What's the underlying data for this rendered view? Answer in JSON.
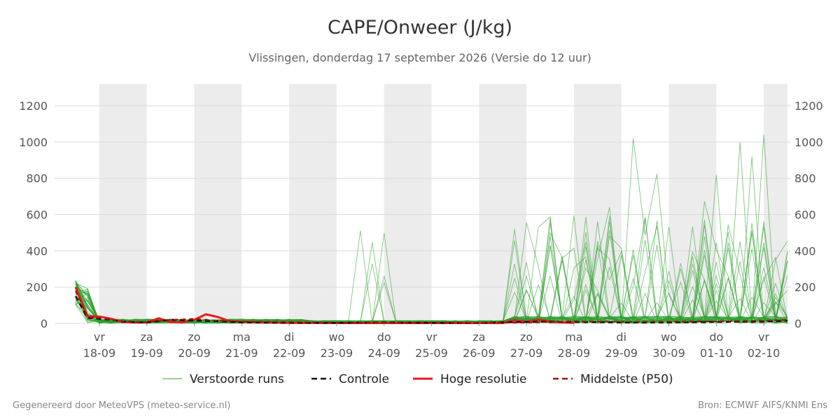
{
  "header": {
    "title": "CAPE/Onweer (J/kg)",
    "subtitle": "Vlissingen, donderdag 17 september 2026 (Versie do 12 uur)"
  },
  "footer": {
    "left": "Gegenereerd door MeteoVPS (meteo-service.nl)",
    "right": "Bron: ECMWF AIFS/KNMI Ens"
  },
  "colors": {
    "ensemble": "#2ca02c",
    "control": "#111111",
    "hires": "#e41a1c",
    "median": "#a50f15",
    "shade": "#ececec",
    "grid": "#d9d9d9"
  },
  "chart_data": {
    "type": "line",
    "title": "CAPE/Onweer (J/kg)",
    "subtitle": "Vlissingen, donderdag 17 september 2026 (Versie do 12 uur)",
    "xlabel": "",
    "ylabel": "",
    "xlim": [
      "2026-09-17T12:00",
      "2026-10-02T12:00"
    ],
    "ylim": [
      0,
      1320
    ],
    "y_ticks": [
      0,
      200,
      400,
      600,
      800,
      1000,
      1200
    ],
    "y_axis_both_sides": true,
    "grid": "horizontal",
    "legend_position": "bottom",
    "x_ticks": [
      {
        "day": "vr",
        "date": "18-09",
        "t": "2026-09-18T00:00"
      },
      {
        "day": "za",
        "date": "19-09",
        "t": "2026-09-19T00:00"
      },
      {
        "day": "zo",
        "date": "20-09",
        "t": "2026-09-20T00:00"
      },
      {
        "day": "ma",
        "date": "21-09",
        "t": "2026-09-21T00:00"
      },
      {
        "day": "di",
        "date": "22-09",
        "t": "2026-09-22T00:00"
      },
      {
        "day": "wo",
        "date": "23-09",
        "t": "2026-09-23T00:00"
      },
      {
        "day": "do",
        "date": "24-09",
        "t": "2026-09-24T00:00"
      },
      {
        "day": "vr",
        "date": "25-09",
        "t": "2026-09-25T00:00"
      },
      {
        "day": "za",
        "date": "26-09",
        "t": "2026-09-26T00:00"
      },
      {
        "day": "zo",
        "date": "27-09",
        "t": "2026-09-27T00:00"
      },
      {
        "day": "ma",
        "date": "28-09",
        "t": "2026-09-28T00:00"
      },
      {
        "day": "di",
        "date": "29-09",
        "t": "2026-09-29T00:00"
      },
      {
        "day": "wo",
        "date": "30-09",
        "t": "2026-09-30T00:00"
      },
      {
        "day": "do",
        "date": "01-10",
        "t": "2026-10-01T00:00"
      },
      {
        "day": "vr",
        "date": "02-10",
        "t": "2026-10-02T00:00"
      }
    ],
    "shaded_days": [
      "18-09",
      "20-09",
      "22-09",
      "24-09",
      "26-09",
      "28-09",
      "30-09",
      "02-10"
    ],
    "legend": [
      {
        "label": "Verstoorde runs",
        "key": "ensemble",
        "style": "thin"
      },
      {
        "label": "Controle",
        "key": "control",
        "style": "dashed"
      },
      {
        "label": "Hoge resolutie",
        "key": "hires",
        "style": "thick"
      },
      {
        "label": "Middelste (P50)",
        "key": "median",
        "style": "dashed"
      }
    ],
    "series": [
      {
        "name": "Hoge resolutie",
        "kind": "hires",
        "x": [
          "2026-09-17T12:00",
          "2026-09-17T18:00",
          "2026-09-18T00:00",
          "2026-09-18T06:00",
          "2026-09-18T12:00",
          "2026-09-18T18:00",
          "2026-09-19T00:00",
          "2026-09-19T06:00",
          "2026-09-19T12:00",
          "2026-09-19T18:00",
          "2026-09-20T00:00",
          "2026-09-20T06:00",
          "2026-09-20T12:00",
          "2026-09-20T18:00",
          "2026-09-21T00:00",
          "2026-09-21T12:00",
          "2026-09-22T00:00",
          "2026-09-23T00:00",
          "2026-09-24T00:00",
          "2026-09-25T00:00",
          "2026-09-26T00:00",
          "2026-09-26T12:00",
          "2026-09-26T18:00",
          "2026-09-27T00:00",
          "2026-09-27T06:00",
          "2026-09-27T12:00",
          "2026-09-27T18:00",
          "2026-09-28T00:00"
        ],
        "y": [
          200,
          40,
          38,
          25,
          8,
          5,
          5,
          28,
          8,
          5,
          20,
          50,
          35,
          12,
          8,
          5,
          3,
          2,
          2,
          2,
          2,
          2,
          18,
          8,
          20,
          10,
          5,
          3
        ]
      },
      {
        "name": "Controle",
        "kind": "control",
        "x": [
          "2026-09-17T12:00",
          "2026-09-17T18:00",
          "2026-09-18T00:00",
          "2026-09-18T06:00",
          "2026-09-18T12:00",
          "2026-09-19T00:00",
          "2026-09-19T12:00",
          "2026-09-20T00:00",
          "2026-09-20T12:00",
          "2026-09-21T00:00",
          "2026-09-22T00:00",
          "2026-09-23T00:00",
          "2026-09-24T00:00",
          "2026-09-25T00:00",
          "2026-09-26T00:00",
          "2026-09-27T00:00",
          "2026-09-27T12:00",
          "2026-09-28T00:00",
          "2026-09-29T00:00",
          "2026-09-30T00:00",
          "2026-10-01T00:00",
          "2026-10-02T00:00",
          "2026-10-02T12:00"
        ],
        "y": [
          150,
          30,
          25,
          20,
          10,
          5,
          20,
          15,
          12,
          5,
          3,
          3,
          5,
          3,
          3,
          8,
          10,
          8,
          5,
          5,
          8,
          10,
          15
        ]
      },
      {
        "name": "Middelste (P50)",
        "kind": "median",
        "x": [
          "2026-09-17T12:00",
          "2026-09-17T18:00",
          "2026-09-18T00:00",
          "2026-09-18T12:00",
          "2026-09-19T00:00",
          "2026-09-19T12:00",
          "2026-09-20T00:00",
          "2026-09-20T12:00",
          "2026-09-21T00:00",
          "2026-09-22T00:00",
          "2026-09-23T00:00",
          "2026-09-24T00:00",
          "2026-09-25T00:00",
          "2026-09-26T00:00",
          "2026-09-27T00:00",
          "2026-09-28T00:00",
          "2026-09-29T00:00",
          "2026-09-30T00:00",
          "2026-10-01T00:00",
          "2026-10-02T00:00",
          "2026-10-02T12:00"
        ],
        "y": [
          180,
          35,
          30,
          12,
          6,
          20,
          25,
          15,
          10,
          8,
          4,
          4,
          5,
          4,
          4,
          12,
          8,
          10,
          12,
          15,
          20
        ]
      }
    ]
  }
}
